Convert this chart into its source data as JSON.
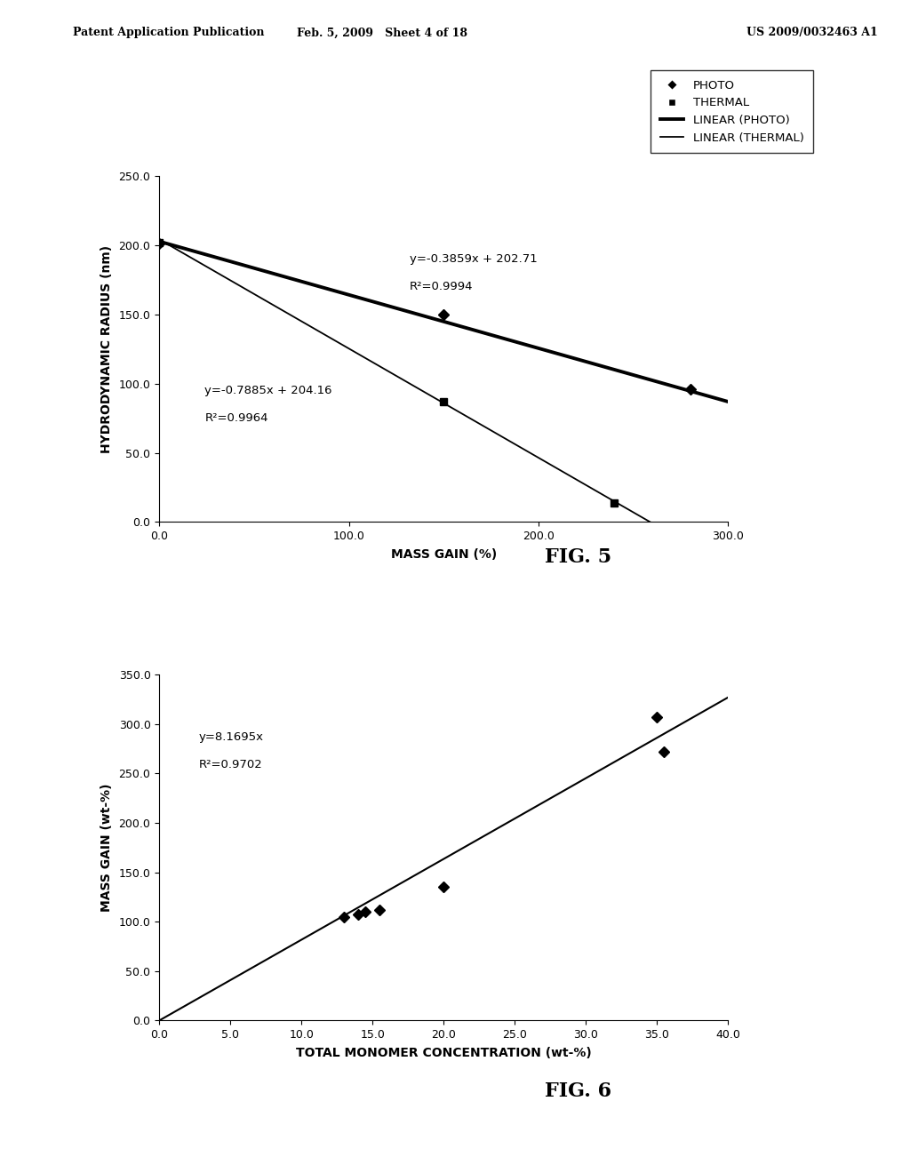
{
  "header_left": "Patent Application Publication",
  "header_mid": "Feb. 5, 2009   Sheet 4 of 18",
  "header_right": "US 2009/0032463 A1",
  "fig5": {
    "title": "FIG. 5",
    "xlabel": "MASS GAIN (%)",
    "ylabel": "HYDRODYNAMIC RADIUS (nm)",
    "xlim": [
      0.0,
      300.0
    ],
    "ylim": [
      0.0,
      250.0
    ],
    "xticks": [
      0.0,
      100.0,
      200.0,
      300.0
    ],
    "yticks": [
      0.0,
      50.0,
      100.0,
      150.0,
      200.0,
      250.0
    ],
    "photo_points": [
      [
        0.0,
        201.0
      ],
      [
        150.0,
        150.0
      ],
      [
        280.0,
        96.0
      ]
    ],
    "thermal_points": [
      [
        0.0,
        202.0
      ],
      [
        150.0,
        87.0
      ],
      [
        240.0,
        14.0
      ]
    ],
    "photo_line_eq": "y=-0.3859x + 202.71",
    "photo_line_r2": "R²=0.9994",
    "thermal_line_eq": "y=-0.7885x + 204.16",
    "thermal_line_r2": "R²=0.9964",
    "photo_slope": -0.3859,
    "photo_intercept": 202.71,
    "thermal_slope": -0.7885,
    "thermal_intercept": 204.16,
    "legend_labels": [
      "PHOTO",
      "THERMAL",
      "LINEAR (PHOTO)",
      "LINEAR (THERMAL)"
    ]
  },
  "fig6": {
    "title": "FIG. 6",
    "xlabel": "TOTAL MONOMER CONCENTRATION (wt-%)",
    "ylabel": "MASS GAIN (wt-%)",
    "xlim": [
      0.0,
      40.0
    ],
    "ylim": [
      0.0,
      350.0
    ],
    "xticks": [
      0.0,
      5.0,
      10.0,
      15.0,
      20.0,
      25.0,
      30.0,
      35.0,
      40.0
    ],
    "yticks": [
      0.0,
      50.0,
      100.0,
      150.0,
      200.0,
      250.0,
      300.0,
      350.0
    ],
    "data_points": [
      [
        13.0,
        105.0
      ],
      [
        14.0,
        107.0
      ],
      [
        14.5,
        110.0
      ],
      [
        15.5,
        112.0
      ],
      [
        20.0,
        135.0
      ],
      [
        35.0,
        307.0
      ],
      [
        35.5,
        272.0
      ]
    ],
    "line_slope": 8.1695,
    "line_eq": "y=8.1695x",
    "line_r2": "R²=0.9702"
  }
}
